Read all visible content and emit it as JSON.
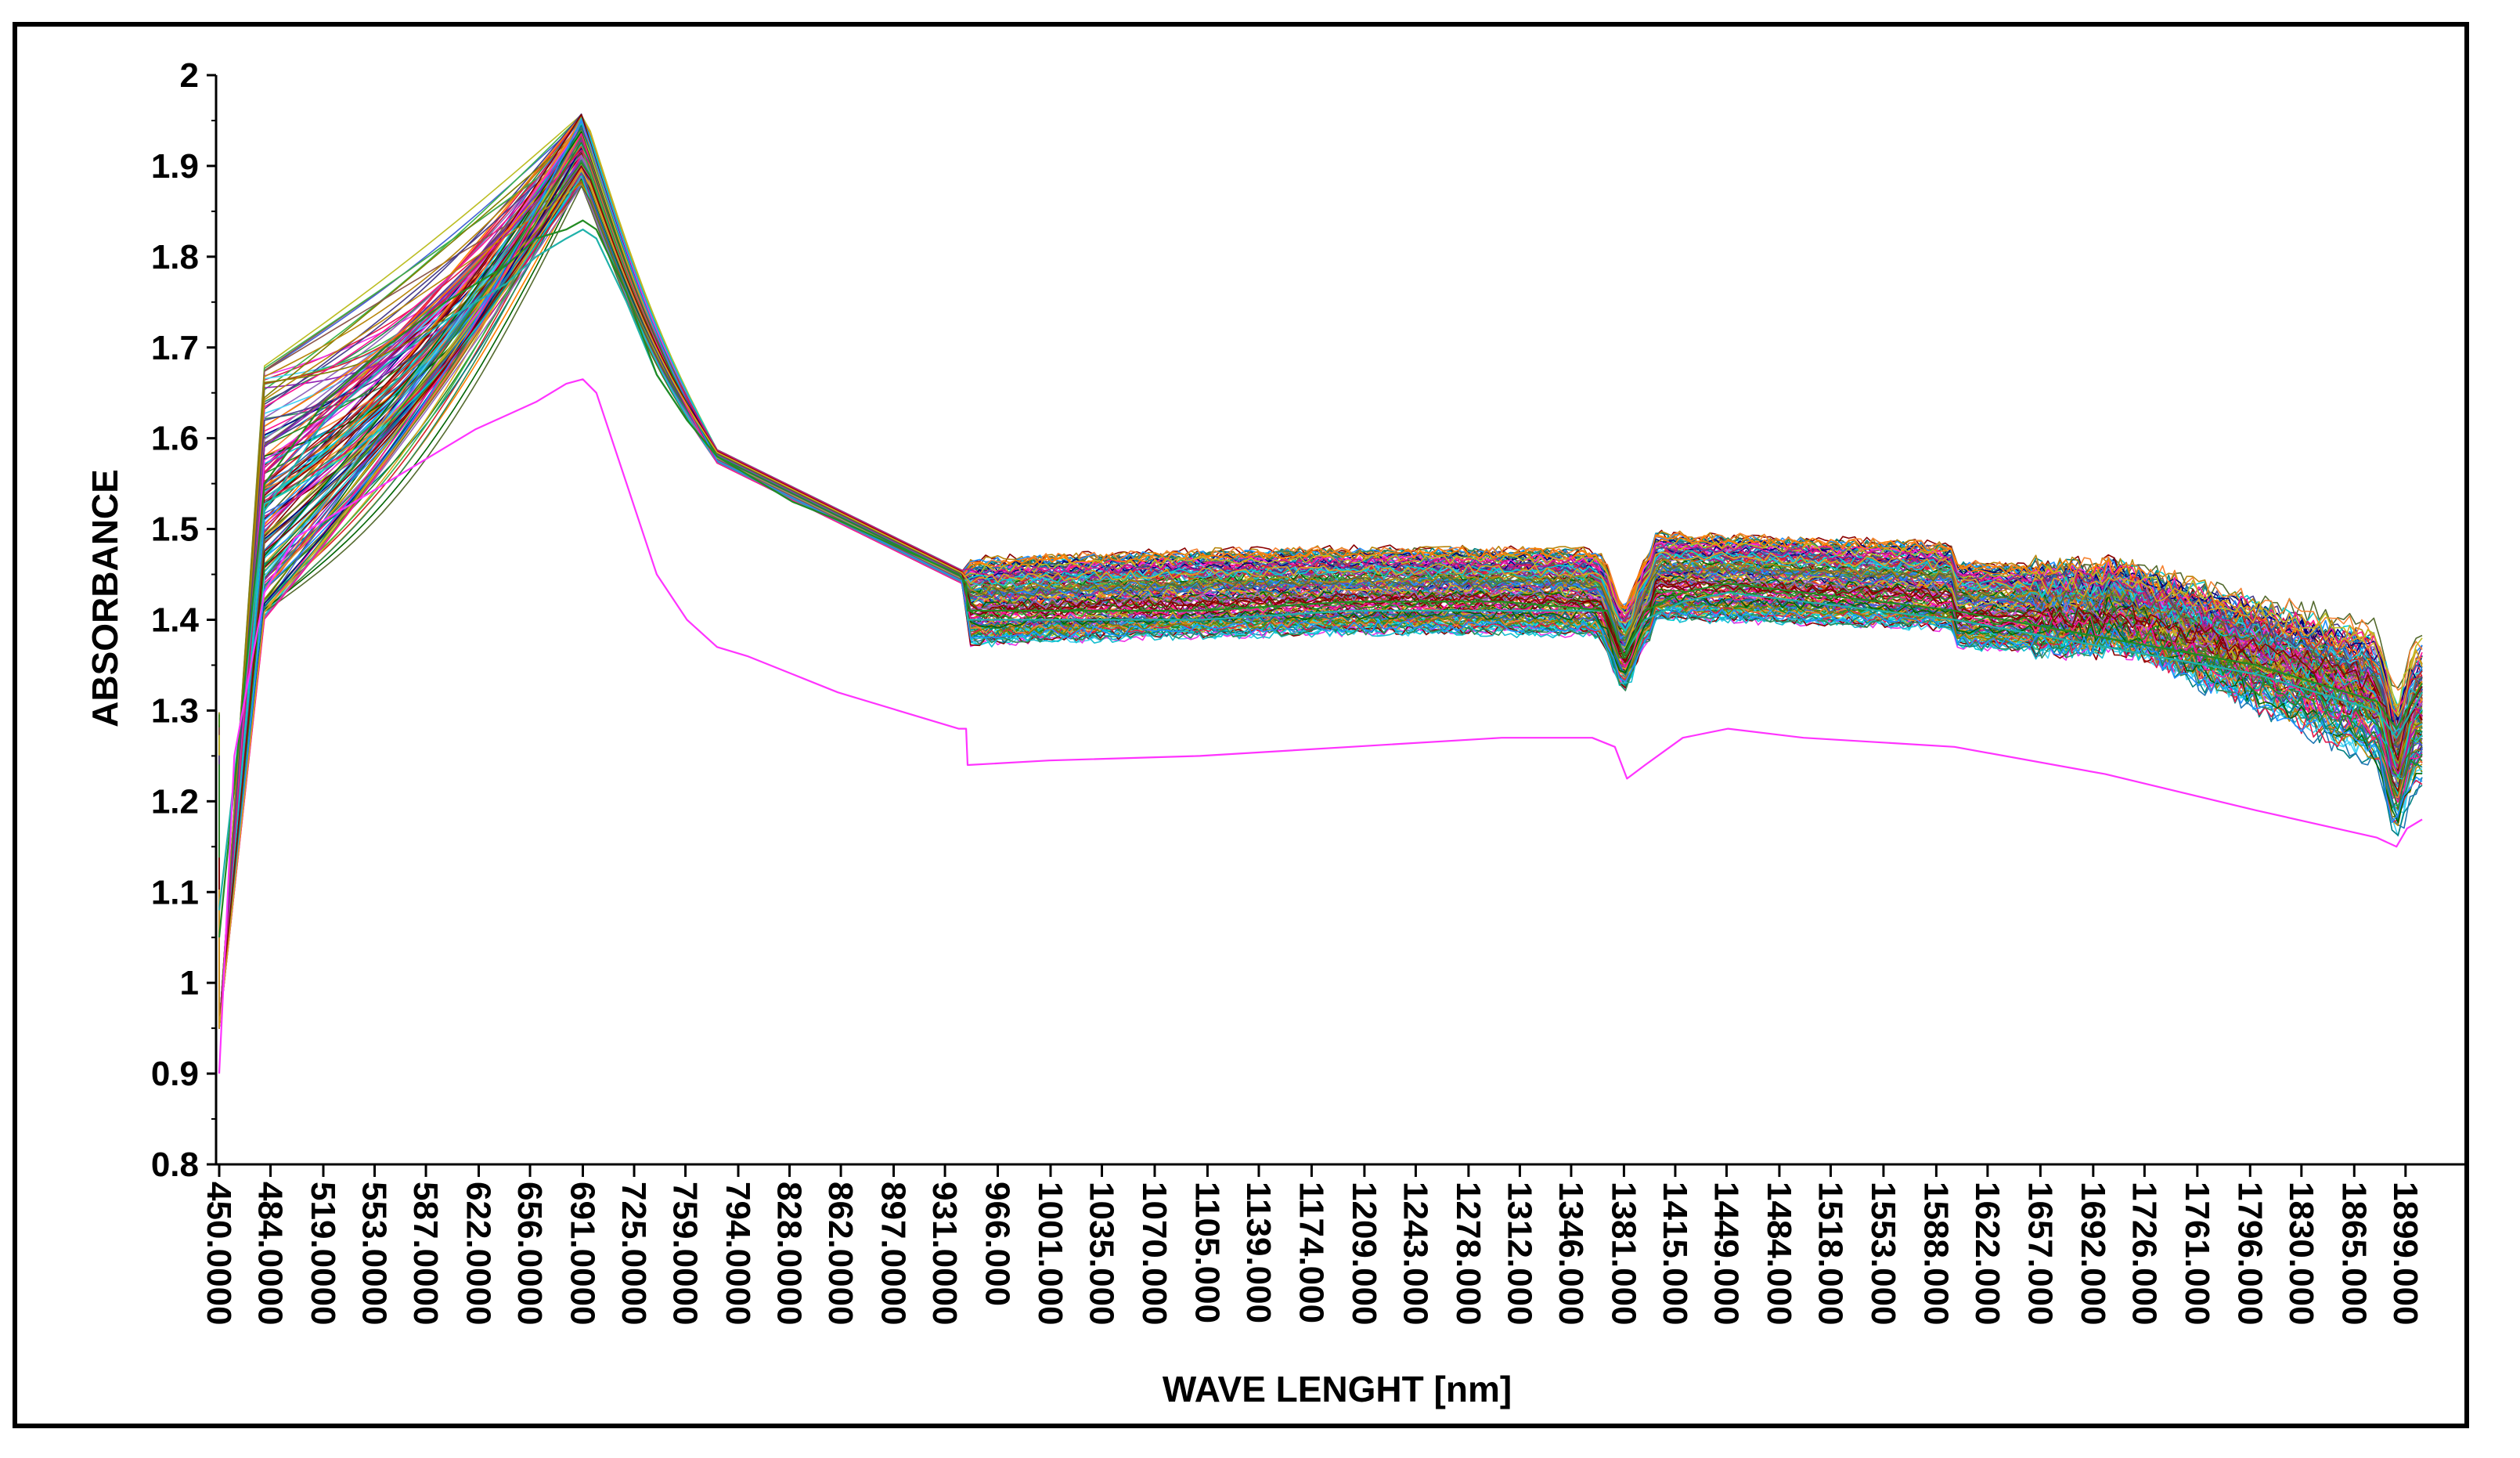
{
  "chart_data": {
    "type": "line",
    "title": "",
    "xlabel": "WAVE LENGHT [nm]",
    "ylabel": "ABSORBANCE",
    "xlim": [
      450,
      1950
    ],
    "ylim": [
      0.8,
      2
    ],
    "grid": false,
    "legend": "none",
    "y_ticks": [
      "0.8",
      "0.9",
      "1",
      "1.1",
      "1.2",
      "1.3",
      "1.4",
      "1.5",
      "1.6",
      "1.7",
      "1.8",
      "1.9",
      "2"
    ],
    "x_ticks": [
      {
        "value": 450,
        "label": "450.0000"
      },
      {
        "value": 484,
        "label": "484.0000"
      },
      {
        "value": 519,
        "label": "519.0000"
      },
      {
        "value": 553,
        "label": "553.0000"
      },
      {
        "value": 587,
        "label": "587.0000"
      },
      {
        "value": 622,
        "label": "622.0000"
      },
      {
        "value": 656,
        "label": "656.0000"
      },
      {
        "value": 691,
        "label": "691.0000"
      },
      {
        "value": 725,
        "label": "725.0000"
      },
      {
        "value": 759,
        "label": "759.0000"
      },
      {
        "value": 794,
        "label": "794.0000"
      },
      {
        "value": 828,
        "label": "828.0000"
      },
      {
        "value": 862,
        "label": "862.0000"
      },
      {
        "value": 897,
        "label": "897.0000"
      },
      {
        "value": 931,
        "label": "931.0000"
      },
      {
        "value": 966,
        "label": "966.000"
      },
      {
        "value": 1001,
        "label": "1001.000"
      },
      {
        "value": 1035,
        "label": "1035.000"
      },
      {
        "value": 1070,
        "label": "1070.000"
      },
      {
        "value": 1105,
        "label": "1105.000"
      },
      {
        "value": 1139,
        "label": "1139.000"
      },
      {
        "value": 1174,
        "label": "1174.000"
      },
      {
        "value": 1209,
        "label": "1209.000"
      },
      {
        "value": 1243,
        "label": "1243.000"
      },
      {
        "value": 1278,
        "label": "1278.000"
      },
      {
        "value": 1312,
        "label": "1312.000"
      },
      {
        "value": 1346,
        "label": "1346.000"
      },
      {
        "value": 1381,
        "label": "1381.000"
      },
      {
        "value": 1415,
        "label": "1415.000"
      },
      {
        "value": 1449,
        "label": "1449.000"
      },
      {
        "value": 1484,
        "label": "1484.000"
      },
      {
        "value": 1518,
        "label": "1518.000"
      },
      {
        "value": 1553,
        "label": "1553.000"
      },
      {
        "value": 1588,
        "label": "1588.000"
      },
      {
        "value": 1622,
        "label": "1622.000"
      },
      {
        "value": 1657,
        "label": "1657.000"
      },
      {
        "value": 1692,
        "label": "1692.000"
      },
      {
        "value": 1726,
        "label": "1726.000"
      },
      {
        "value": 1761,
        "label": "1761.000"
      },
      {
        "value": 1796,
        "label": "1796.000"
      },
      {
        "value": 1830,
        "label": "1830.000"
      },
      {
        "value": 1865,
        "label": "1865.000"
      },
      {
        "value": 1899,
        "label": "1899.000"
      }
    ],
    "series_colors": [
      "#e6194b",
      "#3cb44b",
      "#4363d8",
      "#f58231",
      "#911eb4",
      "#42d4f4",
      "#f032e6",
      "#2e8b57",
      "#800000",
      "#000080",
      "#808000",
      "#008080",
      "#ff7f00",
      "#1f77b4",
      "#d62728",
      "#9467bd",
      "#8c564b",
      "#17becf",
      "#bcbd22",
      "#006400",
      "#b8860b",
      "#483d8b",
      "#00ced1",
      "#c71585",
      "#556b2f",
      "#ff1493",
      "#1e90ff",
      "#228b22",
      "#8b0000",
      "#daa520"
    ],
    "series": [
      {
        "color": "#20b2aa",
        "x": [
          450,
          480,
          520,
          560,
          600,
          640,
          660,
          680,
          691,
          700,
          720,
          740,
          760,
          780,
          800,
          830,
          860,
          900,
          940,
          945,
          946,
          1000,
          1100,
          1200,
          1300,
          1370,
          1381,
          1395,
          1420,
          1450,
          1500,
          1600,
          1700,
          1800,
          1880,
          1893,
          1910
        ],
        "y": [
          1.08,
          1.52,
          1.62,
          1.68,
          1.73,
          1.77,
          1.8,
          1.82,
          1.83,
          1.82,
          1.75,
          1.67,
          1.62,
          1.58,
          1.56,
          1.53,
          1.51,
          1.48,
          1.45,
          1.44,
          1.4,
          1.4,
          1.4,
          1.41,
          1.41,
          1.41,
          1.36,
          1.4,
          1.42,
          1.43,
          1.42,
          1.4,
          1.37,
          1.34,
          1.3,
          1.27,
          1.32
        ]
      },
      {
        "color": "#228b22",
        "x": [
          450,
          480,
          520,
          560,
          600,
          640,
          660,
          680,
          691,
          700,
          720,
          740,
          760,
          780,
          800,
          830,
          860,
          900,
          940,
          945,
          946,
          1000,
          1100,
          1200,
          1300,
          1370,
          1381,
          1395,
          1420,
          1450,
          1500,
          1600,
          1700,
          1800,
          1880,
          1893,
          1910
        ],
        "y": [
          1.05,
          1.55,
          1.64,
          1.7,
          1.75,
          1.79,
          1.82,
          1.83,
          1.84,
          1.83,
          1.76,
          1.67,
          1.62,
          1.58,
          1.56,
          1.53,
          1.51,
          1.48,
          1.45,
          1.44,
          1.41,
          1.41,
          1.41,
          1.42,
          1.42,
          1.41,
          1.36,
          1.41,
          1.43,
          1.44,
          1.43,
          1.41,
          1.38,
          1.35,
          1.31,
          1.28,
          1.33
        ]
      },
      {
        "color": "#ff33ff",
        "x": [
          450,
          460,
          480,
          500,
          540,
          580,
          620,
          660,
          680,
          691,
          700,
          720,
          740,
          760,
          780,
          800,
          830,
          860,
          900,
          940,
          945,
          946,
          1000,
          1100,
          1200,
          1300,
          1360,
          1375,
          1383,
          1395,
          1420,
          1450,
          1500,
          1600,
          1700,
          1800,
          1880,
          1893,
          1900,
          1910
        ],
        "y": [
          0.9,
          1.25,
          1.43,
          1.49,
          1.53,
          1.57,
          1.61,
          1.64,
          1.66,
          1.665,
          1.65,
          1.55,
          1.45,
          1.4,
          1.37,
          1.36,
          1.34,
          1.32,
          1.3,
          1.28,
          1.28,
          1.24,
          1.245,
          1.25,
          1.26,
          1.27,
          1.27,
          1.26,
          1.225,
          1.24,
          1.27,
          1.28,
          1.27,
          1.26,
          1.23,
          1.19,
          1.16,
          1.15,
          1.17,
          1.18
        ]
      }
    ]
  }
}
